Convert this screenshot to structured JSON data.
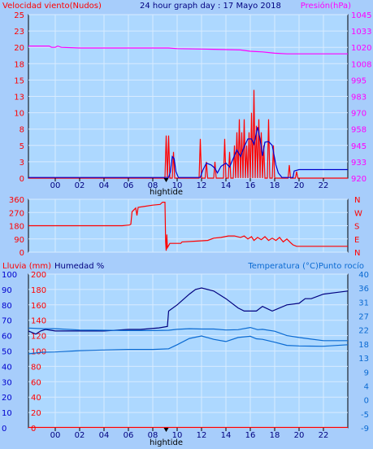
{
  "header": {
    "left_title": "Velocidad viento(Nudos)",
    "center_title": "24 hour graph day : 17 Mayo 2018",
    "right_title": "Presión(hPa)"
  },
  "chart_data": [
    {
      "type": "line",
      "panel": "wind_pressure",
      "x_ticks": [
        "00",
        "02",
        "04",
        "06",
        "08",
        "10",
        "12",
        "14",
        "16",
        "18",
        "20",
        "22"
      ],
      "x_marker_label": "hightide",
      "x_marker_hour": 9.1,
      "xlim": [
        -2.2,
        24
      ],
      "left_axis": {
        "label": "Velocidad viento(Nudos)",
        "ticks": [
          "0",
          "3",
          "5",
          "8",
          "10",
          "13",
          "15",
          "18",
          "20",
          "23",
          "25"
        ],
        "ylim": [
          0,
          25
        ]
      },
      "right_axis": {
        "label": "Presión(hPa)",
        "ticks": [
          "920",
          "933",
          "945",
          "958",
          "970",
          "983",
          "995",
          "1008",
          "1020",
          "1033",
          "1045"
        ],
        "ylim": [
          920,
          1045
        ]
      },
      "series": [
        {
          "name": "gust",
          "color": "#ff0000",
          "axis": "left",
          "points": [
            [
              -2.2,
              0
            ],
            [
              9.0,
              0
            ],
            [
              9.1,
              6.5
            ],
            [
              9.2,
              0
            ],
            [
              9.3,
              6.5
            ],
            [
              9.4,
              0
            ],
            [
              9.6,
              0
            ],
            [
              9.7,
              4
            ],
            [
              9.8,
              0
            ],
            [
              11.8,
              0
            ],
            [
              11.9,
              6
            ],
            [
              12.0,
              0
            ],
            [
              12.3,
              0
            ],
            [
              12.4,
              2.5
            ],
            [
              12.5,
              0
            ],
            [
              13.0,
              0
            ],
            [
              13.1,
              2.5
            ],
            [
              13.2,
              0
            ],
            [
              13.8,
              0
            ],
            [
              13.9,
              6
            ],
            [
              14.0,
              0
            ],
            [
              14.2,
              0
            ],
            [
              14.3,
              4
            ],
            [
              14.4,
              0
            ],
            [
              14.6,
              0
            ],
            [
              14.7,
              5
            ],
            [
              14.8,
              0
            ],
            [
              14.9,
              7
            ],
            [
              15.0,
              0
            ],
            [
              15.1,
              9
            ],
            [
              15.2,
              0
            ],
            [
              15.3,
              7
            ],
            [
              15.4,
              0
            ],
            [
              15.5,
              9
            ],
            [
              15.6,
              0
            ],
            [
              15.7,
              5
            ],
            [
              15.8,
              0
            ],
            [
              15.9,
              7
            ],
            [
              16.0,
              0
            ],
            [
              16.1,
              10
            ],
            [
              16.2,
              0
            ],
            [
              16.3,
              13.5
            ],
            [
              16.4,
              0
            ],
            [
              16.5,
              8
            ],
            [
              16.6,
              0
            ],
            [
              16.7,
              9
            ],
            [
              16.8,
              0
            ],
            [
              16.9,
              7
            ],
            [
              17.0,
              0
            ],
            [
              17.1,
              5
            ],
            [
              17.2,
              0
            ],
            [
              17.4,
              0
            ],
            [
              17.5,
              9
            ],
            [
              17.6,
              0
            ],
            [
              17.8,
              0
            ],
            [
              17.9,
              5
            ],
            [
              18.0,
              0
            ],
            [
              19.1,
              0
            ],
            [
              19.2,
              2
            ],
            [
              19.3,
              0
            ],
            [
              19.7,
              0
            ],
            [
              19.8,
              1
            ],
            [
              19.9,
              0
            ],
            [
              24,
              0
            ]
          ]
        },
        {
          "name": "wind",
          "color": "#0000cd",
          "axis": "left",
          "points": [
            [
              -2.2,
              0.1
            ],
            [
              9.3,
              0.1
            ],
            [
              9.45,
              1
            ],
            [
              9.6,
              3.3
            ],
            [
              9.75,
              3
            ],
            [
              9.9,
              1
            ],
            [
              10.1,
              0.1
            ],
            [
              11.9,
              0.1
            ],
            [
              12.1,
              1.2
            ],
            [
              12.4,
              2.3
            ],
            [
              12.8,
              2
            ],
            [
              13.1,
              1.5
            ],
            [
              13.3,
              0.8
            ],
            [
              13.6,
              1.8
            ],
            [
              14.0,
              2.3
            ],
            [
              14.3,
              1.7
            ],
            [
              14.6,
              3
            ],
            [
              14.9,
              4.3
            ],
            [
              15.2,
              3.3
            ],
            [
              15.5,
              4.8
            ],
            [
              15.8,
              6
            ],
            [
              16.1,
              6
            ],
            [
              16.3,
              5.2
            ],
            [
              16.6,
              7.8
            ],
            [
              16.8,
              6
            ],
            [
              17.0,
              3.4
            ],
            [
              17.2,
              5.5
            ],
            [
              17.5,
              5.6
            ],
            [
              17.8,
              5
            ],
            [
              18.1,
              2
            ],
            [
              18.3,
              0.8
            ],
            [
              18.6,
              0.1
            ],
            [
              19.5,
              0.1
            ],
            [
              19.6,
              1.1
            ],
            [
              20.0,
              1.3
            ],
            [
              24,
              1.3
            ]
          ]
        },
        {
          "name": "pressure",
          "color": "#ff00ff",
          "axis": "right",
          "points": [
            [
              -2.2,
              1021
            ],
            [
              -0.5,
              1021
            ],
            [
              -0.3,
              1020
            ],
            [
              0,
              1020
            ],
            [
              0.2,
              1021
            ],
            [
              0.5,
              1020
            ],
            [
              2,
              1019.5
            ],
            [
              6,
              1019.5
            ],
            [
              9.3,
              1019.5
            ],
            [
              10,
              1019
            ],
            [
              13,
              1018.5
            ],
            [
              15.2,
              1018
            ],
            [
              16,
              1017
            ],
            [
              17,
              1016.5
            ],
            [
              18,
              1015.5
            ],
            [
              19,
              1015
            ],
            [
              24,
              1015
            ]
          ]
        }
      ]
    },
    {
      "type": "line",
      "panel": "wind_direction",
      "left_axis": {
        "ticks": [
          "0",
          "90",
          "180",
          "270",
          "360"
        ],
        "ylim": [
          0,
          360
        ]
      },
      "right_axis": {
        "ticks": [
          "N",
          "E",
          "S",
          "W",
          "N"
        ]
      },
      "series": [
        {
          "name": "direction",
          "color": "#ff0000",
          "axis": "left",
          "points": [
            [
              -2.2,
              180
            ],
            [
              5.5,
              180
            ],
            [
              6.1,
              185
            ],
            [
              6.2,
              190
            ],
            [
              6.3,
              275
            ],
            [
              6.6,
              300
            ],
            [
              6.7,
              250
            ],
            [
              6.8,
              305
            ],
            [
              7.2,
              310
            ],
            [
              8.0,
              320
            ],
            [
              8.6,
              325
            ],
            [
              8.8,
              340
            ],
            [
              9.0,
              340
            ],
            [
              9.05,
              70
            ],
            [
              9.1,
              10
            ],
            [
              9.15,
              120
            ],
            [
              9.2,
              30
            ],
            [
              9.4,
              60
            ],
            [
              10.3,
              60
            ],
            [
              10.4,
              70
            ],
            [
              11.5,
              75
            ],
            [
              12.5,
              80
            ],
            [
              13.0,
              95
            ],
            [
              13.6,
              100
            ],
            [
              14.2,
              110
            ],
            [
              14.7,
              110
            ],
            [
              15.2,
              100
            ],
            [
              15.5,
              110
            ],
            [
              15.8,
              90
            ],
            [
              16.1,
              105
            ],
            [
              16.3,
              80
            ],
            [
              16.6,
              100
            ],
            [
              16.9,
              85
            ],
            [
              17.2,
              105
            ],
            [
              17.5,
              80
            ],
            [
              17.8,
              95
            ],
            [
              18.1,
              80
            ],
            [
              18.4,
              100
            ],
            [
              18.7,
              70
            ],
            [
              19.0,
              90
            ],
            [
              19.3,
              65
            ],
            [
              19.5,
              50
            ],
            [
              19.8,
              40
            ],
            [
              24,
              40
            ]
          ]
        }
      ]
    },
    {
      "type": "line",
      "panel": "humidity_temp_rain",
      "header_left": "Lluvia (mm)",
      "header_mid": "Humedad %",
      "header_right": "Temperatura (°C)Punto rocío",
      "x_ticks": [
        "00",
        "02",
        "04",
        "06",
        "08",
        "10",
        "12",
        "14",
        "16",
        "18",
        "20",
        "22"
      ],
      "x_marker_label": "hightide",
      "rain_axis": {
        "label": "Lluvia (mm)",
        "ticks": [
          "0",
          "20",
          "40",
          "60",
          "80",
          "100",
          "120",
          "140",
          "160",
          "180",
          "200"
        ],
        "ylim": [
          0,
          200
        ]
      },
      "humidity_axis": {
        "label": "Humedad %",
        "ticks": [
          "0",
          "10",
          "20",
          "30",
          "40",
          "50",
          "60",
          "70",
          "80",
          "90",
          "100"
        ],
        "ylim": [
          0,
          100
        ]
      },
      "temperature_axis": {
        "label": "Temperatura (°C)Punto rocío",
        "ticks": [
          "-9",
          "-5",
          "0",
          "4",
          "9",
          "13",
          "18",
          "22",
          "27",
          "31",
          "36",
          "40"
        ],
        "ylim": [
          -9,
          40
        ]
      },
      "series": [
        {
          "name": "humidity",
          "color": "#000080",
          "axis": "humidity",
          "points": [
            [
              -2.2,
              63
            ],
            [
              -1.6,
              61
            ],
            [
              -1.2,
              63
            ],
            [
              -0.8,
              64
            ],
            [
              0,
              63
            ],
            [
              2,
              63
            ],
            [
              4,
              63
            ],
            [
              6,
              64
            ],
            [
              7,
              64
            ],
            [
              8.5,
              65
            ],
            [
              9.2,
              66
            ],
            [
              9.3,
              76
            ],
            [
              10,
              80
            ],
            [
              11,
              87
            ],
            [
              11.5,
              90
            ],
            [
              12,
              91
            ],
            [
              13,
              89
            ],
            [
              14,
              84
            ],
            [
              15,
              78
            ],
            [
              15.5,
              76
            ],
            [
              16,
              76
            ],
            [
              16.5,
              76
            ],
            [
              17,
              79
            ],
            [
              17.8,
              76
            ],
            [
              19,
              80
            ],
            [
              20,
              81
            ],
            [
              20.5,
              84
            ],
            [
              21,
              84
            ],
            [
              22,
              87
            ],
            [
              23,
              88
            ],
            [
              24,
              89
            ]
          ]
        },
        {
          "name": "temperature",
          "color": "#0a6ad2",
          "axis": "temperature",
          "points": [
            [
              -2.2,
              22.8
            ],
            [
              -1,
              22.6
            ],
            [
              0,
              22.6
            ],
            [
              2,
              22.2
            ],
            [
              4,
              22.1
            ],
            [
              6,
              22.0
            ],
            [
              8,
              22.0
            ],
            [
              9.3,
              22.1
            ],
            [
              10,
              22.4
            ],
            [
              11,
              22.6
            ],
            [
              12,
              22.5
            ],
            [
              13,
              22.5
            ],
            [
              14,
              22.2
            ],
            [
              15,
              22.3
            ],
            [
              16,
              23.0
            ],
            [
              16.6,
              22.3
            ],
            [
              17,
              22.4
            ],
            [
              18,
              21.8
            ],
            [
              19,
              20.4
            ],
            [
              20,
              19.8
            ],
            [
              22,
              18.8
            ],
            [
              24,
              18.8
            ]
          ]
        },
        {
          "name": "dew_point",
          "color": "#0a6ad2",
          "axis": "temperature",
          "points": [
            [
              -2.2,
              14.6
            ],
            [
              -1,
              15.1
            ],
            [
              0,
              15.2
            ],
            [
              2,
              15.6
            ],
            [
              4,
              15.8
            ],
            [
              6,
              16.0
            ],
            [
              8,
              16.0
            ],
            [
              9.3,
              16.2
            ],
            [
              10,
              17.5
            ],
            [
              11,
              19.5
            ],
            [
              12,
              20.3
            ],
            [
              13,
              19.2
            ],
            [
              14,
              18.5
            ],
            [
              15,
              19.8
            ],
            [
              16,
              20.2
            ],
            [
              16.5,
              19.4
            ],
            [
              17,
              19.2
            ],
            [
              18,
              18.3
            ],
            [
              19,
              17.3
            ],
            [
              20,
              17.1
            ],
            [
              22,
              17.0
            ],
            [
              24,
              17.5
            ]
          ]
        },
        {
          "name": "rain",
          "color": "#ff0000",
          "axis": "rain",
          "points": [
            [
              -2.2,
              0.5
            ],
            [
              24,
              0.5
            ]
          ]
        }
      ]
    }
  ]
}
